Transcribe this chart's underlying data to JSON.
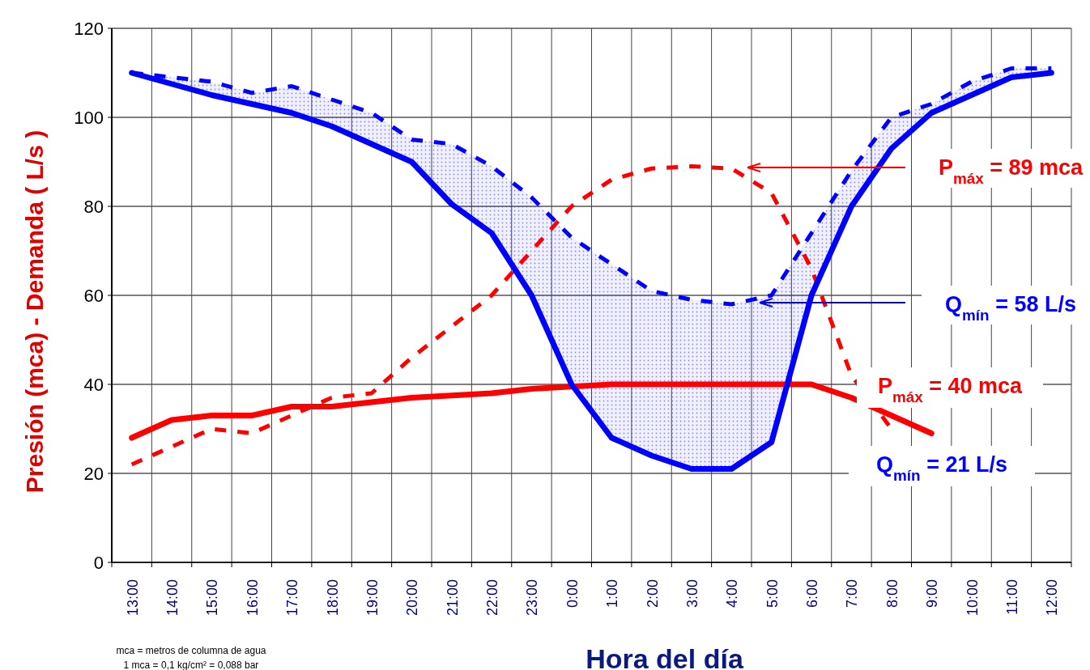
{
  "chart_data": {
    "type": "line",
    "xlabel": "Hora del día",
    "ylabel": "Presión (mca)  -  Demanda ( L/s )",
    "categories": [
      "13:00",
      "14:00",
      "15:00",
      "16:00",
      "17:00",
      "18:00",
      "19:00",
      "20:00",
      "21:00",
      "22:00",
      "23:00",
      "0:00",
      "1:00",
      "2:00",
      "3:00",
      "4:00",
      "5:00",
      "6:00",
      "7:00",
      "8:00",
      "9:00",
      "10:00",
      "11:00",
      "12:00"
    ],
    "ylim": [
      0,
      120
    ],
    "yticks": [
      0,
      20,
      40,
      60,
      80,
      100,
      120
    ],
    "grid": true,
    "marker": "none",
    "series": [
      {
        "color": "#ff0000",
        "line_style": "solid",
        "values": [
          28,
          32,
          33,
          33,
          35,
          35,
          36,
          37,
          37.5,
          38,
          39,
          39.5,
          40,
          40,
          40,
          40,
          40,
          40,
          37,
          33,
          29,
          null,
          null,
          null
        ]
      },
      {
        "color": "#ff0000",
        "line_style": "dashed",
        "values": [
          22,
          26,
          30,
          29,
          33,
          37,
          38,
          46,
          53,
          60,
          70,
          80,
          86,
          88.5,
          89,
          88.5,
          83,
          66,
          42,
          30,
          null,
          null,
          null,
          null
        ]
      },
      {
        "color": "#0000ff",
        "line_style": "dashed",
        "values": [
          110,
          109,
          108,
          105.5,
          107,
          104,
          101,
          95,
          94,
          89,
          82,
          73,
          67,
          61,
          59,
          58,
          60,
          74,
          88,
          100,
          103,
          108,
          111,
          111
        ],
        "lower": [
          110,
          107.5,
          105,
          103,
          101,
          98,
          94,
          90,
          80.5,
          74,
          60,
          40,
          28,
          24,
          21,
          21,
          27,
          60,
          80,
          93,
          101,
          105,
          109,
          110
        ],
        "upper": [
          110,
          109,
          108,
          105.5,
          107,
          104,
          101,
          95,
          94,
          89,
          82,
          73,
          67,
          61,
          59,
          58,
          60,
          74,
          88,
          100,
          103,
          108,
          111,
          111
        ]
      },
      {
        "color": "#0000ff",
        "line_style": "solid",
        "values": [
          110,
          107.5,
          105,
          103,
          101,
          98,
          94,
          90,
          80.5,
          74,
          60,
          40,
          28,
          24,
          21,
          21,
          27,
          60,
          80,
          93,
          101,
          105,
          109,
          110
        ]
      }
    ],
    "annotations": [
      "P$_{máx}$ = 89 mca",
      "Q$_{mín}$ = 58 L/s",
      "P$_{máx}$ = 40 mca",
      "Q$_{mín}$ = 21 L/s",
      "mca = metros de columna de agua",
      "1 mca = 0,1 kg/cm² = 0,088 bar"
    ]
  }
}
